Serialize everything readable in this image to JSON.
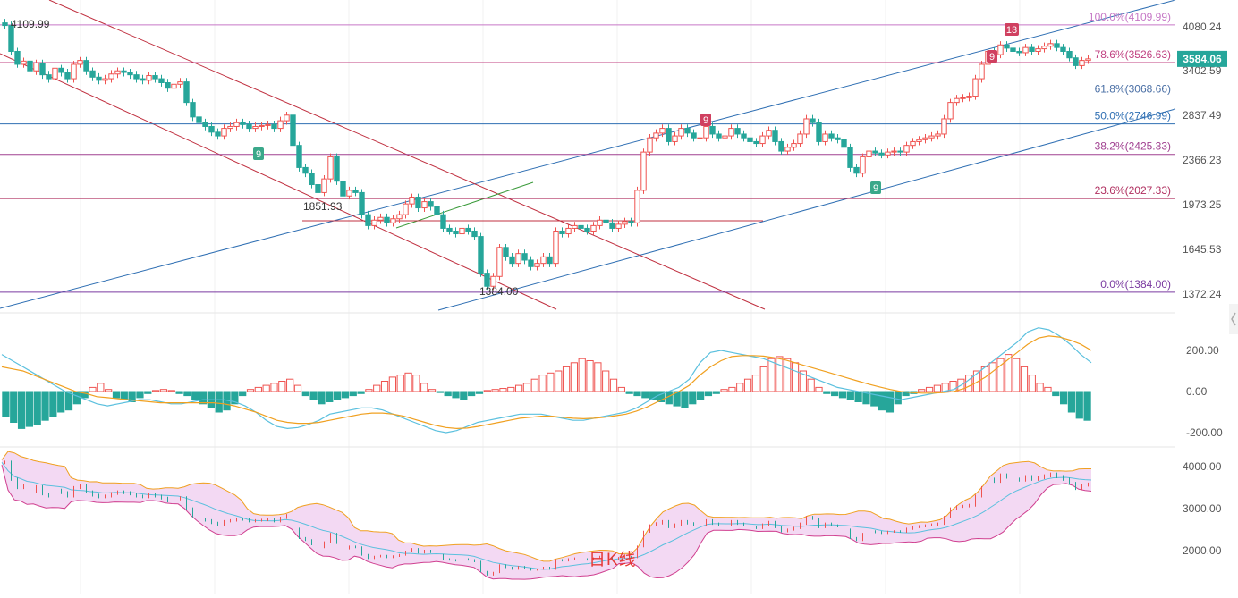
{
  "chart_data": [
    {
      "type": "candlestick",
      "title": "",
      "watermark": "日K线",
      "current_price": "3584.06",
      "y_ticks": [
        "4080.24",
        "3402.59",
        "2837.49",
        "2366.23",
        "1973.25",
        "1645.53",
        "1372.24"
      ],
      "y_tick_values": [
        4080.24,
        3402.59,
        2837.49,
        2366.23,
        1973.25,
        1645.53,
        1372.24
      ],
      "fib_levels": [
        {
          "label": "100.0%(4109.99)",
          "value": 4109.99,
          "color": "#c678c6"
        },
        {
          "label": "78.6%(3526.63)",
          "value": 3526.63,
          "color": "#c04080"
        },
        {
          "label": "61.8%(3068.66)",
          "value": 3068.66,
          "color": "#4a6fa5"
        },
        {
          "label": "50.0%(2746.99)",
          "value": 2746.99,
          "color": "#2f6fb3"
        },
        {
          "label": "38.2%(2425.33)",
          "value": 2425.33,
          "color": "#a04090"
        },
        {
          "label": "23.6%(2027.33)",
          "value": 2027.33,
          "color": "#b03060"
        },
        {
          "label": "0.0%(1384.00)",
          "value": 1384.0,
          "color": "#7a3aa0"
        }
      ],
      "annotations": {
        "high": "4109.99",
        "low": "1384.00",
        "support": "1851.93",
        "td_counts": [
          {
            "text": "9",
            "color": "#3aa88a",
            "kind": "buy"
          },
          {
            "text": "9",
            "color": "#d04060",
            "kind": "sell"
          },
          {
            "text": "9",
            "color": "#3aa88a",
            "kind": "buy"
          },
          {
            "text": "9",
            "color": "#d04060",
            "kind": "sell"
          },
          {
            "text": "13",
            "color": "#d04060",
            "kind": "sell"
          }
        ]
      },
      "colors": {
        "up": "#ef5350",
        "down": "#26a69a"
      },
      "closes": [
        4100,
        3700,
        3500,
        3550,
        3400,
        3520,
        3350,
        3300,
        3440,
        3380,
        3300,
        3500,
        3560,
        3400,
        3320,
        3280,
        3300,
        3360,
        3400,
        3380,
        3350,
        3300,
        3280,
        3340,
        3300,
        3250,
        3180,
        3230,
        3260,
        3000,
        2820,
        2760,
        2720,
        2660,
        2620,
        2700,
        2720,
        2760,
        2740,
        2700,
        2720,
        2730,
        2740,
        2700,
        2780,
        2840,
        2520,
        2300,
        2250,
        2150,
        2080,
        2200,
        2400,
        2180,
        2050,
        2100,
        2080,
        1900,
        1820,
        1860,
        1880,
        1840,
        1870,
        1900,
        1980,
        2040,
        1950,
        2000,
        1960,
        1900,
        1800,
        1780,
        1760,
        1800,
        1780,
        1740,
        1500,
        1420,
        1480,
        1660,
        1600,
        1560,
        1620,
        1580,
        1540,
        1560,
        1600,
        1560,
        1780,
        1760,
        1800,
        1820,
        1800,
        1780,
        1820,
        1860,
        1840,
        1800,
        1830,
        1850,
        1840,
        2100,
        2450,
        2600,
        2650,
        2700,
        2560,
        2620,
        2700,
        2650,
        2600,
        2600,
        2720,
        2640,
        2600,
        2620,
        2700,
        2640,
        2600,
        2560,
        2540,
        2620,
        2680,
        2560,
        2460,
        2500,
        2540,
        2640,
        2800,
        2760,
        2560,
        2640,
        2600,
        2580,
        2500,
        2300,
        2250,
        2400,
        2460,
        2440,
        2420,
        2450,
        2460,
        2450,
        2520,
        2560,
        2580,
        2600,
        2620,
        2640,
        2800,
        3000,
        3050,
        3060,
        3080,
        3300,
        3500,
        3700,
        3650,
        3800,
        3750,
        3700,
        3680,
        3760,
        3700,
        3740,
        3780,
        3820,
        3760,
        3700,
        3600,
        3480,
        3560,
        3584
      ],
      "macd": {
        "y_ticks": [
          "200.00",
          "0.00",
          "-200.00"
        ],
        "y_tick_values": [
          200,
          0,
          -200
        ],
        "hist": [
          -120,
          -150,
          -180,
          -170,
          -160,
          -140,
          -120,
          -100,
          -90,
          -60,
          -30,
          20,
          40,
          10,
          -30,
          -40,
          -50,
          -30,
          -10,
          5,
          10,
          5,
          -10,
          -20,
          -40,
          -60,
          -80,
          -100,
          -90,
          -60,
          -20,
          10,
          20,
          30,
          40,
          50,
          60,
          30,
          -20,
          -40,
          -60,
          -50,
          -40,
          -30,
          -20,
          -10,
          10,
          30,
          50,
          70,
          80,
          90,
          80,
          40,
          10,
          -5,
          -20,
          -30,
          -40,
          -20,
          -10,
          5,
          10,
          15,
          20,
          30,
          40,
          60,
          80,
          90,
          100,
          120,
          140,
          160,
          150,
          140,
          100,
          60,
          20,
          -10,
          -20,
          -30,
          -40,
          -50,
          -60,
          -70,
          -80,
          -60,
          -40,
          -20,
          -10,
          10,
          20,
          40,
          60,
          80,
          120,
          160,
          170,
          160,
          140,
          100,
          60,
          20,
          -10,
          -20,
          -30,
          -40,
          -50,
          -60,
          -70,
          -90,
          -100,
          -60,
          -20,
          -10,
          10,
          20,
          30,
          40,
          50,
          60,
          80,
          100,
          120,
          140,
          160,
          180,
          160,
          120,
          80,
          40,
          20,
          -20,
          -60,
          -100,
          -130,
          -140
        ],
        "dif": [
          180,
          150,
          120,
          90,
          60,
          30,
          0,
          -20,
          -40,
          -60,
          -70,
          -60,
          -50,
          -40,
          -40,
          -50,
          -60,
          -60,
          -50,
          -40,
          -40,
          -40,
          -50,
          -70,
          -100,
          -140,
          -170,
          -180,
          -175,
          -160,
          -140,
          -110,
          -100,
          -90,
          -80,
          -80,
          -90,
          -110,
          -130,
          -150,
          -170,
          -190,
          -200,
          -190,
          -170,
          -150,
          -140,
          -130,
          -120,
          -110,
          -110,
          -110,
          -120,
          -130,
          -140,
          -140,
          -130,
          -120,
          -110,
          -100,
          -80,
          -50,
          -20,
          0,
          20,
          60,
          140,
          190,
          200,
          190,
          180,
          170,
          160,
          140,
          120,
          100,
          80,
          60,
          40,
          20,
          10,
          0,
          -10,
          -20,
          -30,
          -40,
          -30,
          -20,
          -10,
          0,
          10,
          40,
          80,
          120,
          160,
          200,
          240,
          290,
          310,
          300,
          270,
          230,
          180,
          140
        ],
        "dea": [
          120,
          110,
          100,
          80,
          60,
          40,
          20,
          0,
          -10,
          -25,
          -30,
          -35,
          -40,
          -45,
          -50,
          -55,
          -55,
          -55,
          -55,
          -55,
          -55,
          -60,
          -70,
          -85,
          -100,
          -120,
          -140,
          -150,
          -155,
          -155,
          -150,
          -140,
          -130,
          -120,
          -110,
          -105,
          -105,
          -110,
          -120,
          -135,
          -150,
          -165,
          -175,
          -180,
          -178,
          -170,
          -160,
          -150,
          -140,
          -130,
          -125,
          -120,
          -120,
          -125,
          -130,
          -132,
          -130,
          -125,
          -118,
          -110,
          -95,
          -75,
          -50,
          -25,
          0,
          30,
          80,
          120,
          150,
          170,
          175,
          175,
          172,
          165,
          155,
          140,
          125,
          110,
          95,
          80,
          65,
          50,
          35,
          22,
          10,
          0,
          -5,
          -8,
          -8,
          -5,
          0,
          15,
          40,
          70,
          110,
          150,
          190,
          230,
          260,
          270,
          265,
          250,
          230,
          200
        ]
      },
      "boll": {
        "y_ticks": [
          "4000.00",
          "3000.00",
          "2000.00"
        ],
        "y_tick_values": [
          4000,
          3000,
          2000
        ]
      }
    }
  ]
}
